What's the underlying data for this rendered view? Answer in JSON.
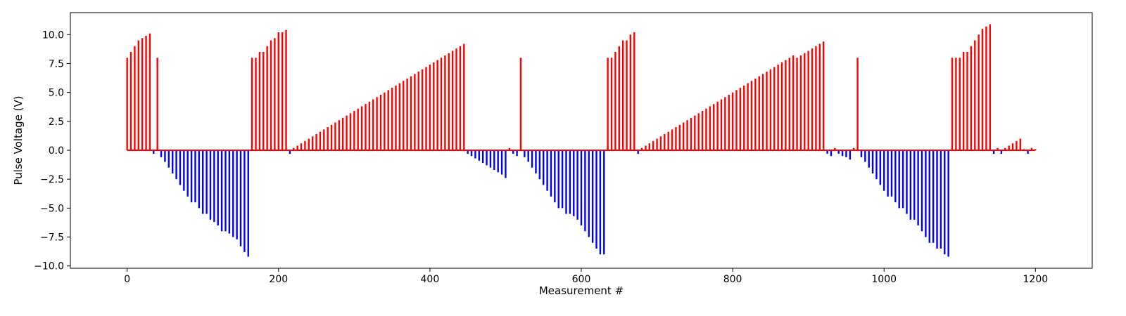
{
  "chart_data": {
    "type": "bar",
    "title": "",
    "xlabel": "Measurement #",
    "ylabel": "Pulse Voltage (V)",
    "xlim": [
      -75,
      1275
    ],
    "ylim": [
      -10.2,
      11.9
    ],
    "xticks": [
      0,
      200,
      400,
      600,
      800,
      1000,
      1200
    ],
    "yticks": [
      -10.0,
      -7.5,
      -5.0,
      -2.5,
      0.0,
      2.5,
      5.0,
      7.5,
      10.0
    ],
    "xtick_labels": [
      "0",
      "200",
      "400",
      "600",
      "800",
      "1000",
      "1200"
    ],
    "ytick_labels": [
      "−10.0",
      "−7.5",
      "−5.0",
      "−2.5",
      "0.0",
      "2.5",
      "5.0",
      "7.5",
      "10.0"
    ],
    "grid": false,
    "legend": "none",
    "colors": {
      "positive": "#ff0000",
      "negative": "#0000ff"
    },
    "sample_spacing": 5,
    "x_start": 0,
    "x_end": 1200,
    "values": [
      8.0,
      8.5,
      9.0,
      9.5,
      9.7,
      9.9,
      10.1,
      -0.3,
      8.0,
      -0.6,
      -1.0,
      -1.5,
      -2.0,
      -2.5,
      -3.0,
      -3.5,
      -4.0,
      -4.5,
      -4.5,
      -5.0,
      -5.5,
      -5.5,
      -6.0,
      -6.2,
      -6.5,
      -7.0,
      -7.0,
      -7.2,
      -7.5,
      -7.7,
      -8.3,
      -8.8,
      -9.2,
      8.0,
      8.0,
      8.5,
      8.5,
      9.0,
      9.5,
      9.7,
      10.2,
      10.2,
      10.4,
      -0.3,
      0.2,
      0.4,
      0.6,
      0.8,
      1.0,
      1.2,
      1.4,
      1.6,
      1.8,
      2.0,
      2.2,
      2.4,
      2.6,
      2.8,
      3.0,
      3.2,
      3.4,
      3.6,
      3.8,
      4.0,
      4.2,
      4.4,
      4.6,
      4.8,
      5.0,
      5.2,
      5.4,
      5.6,
      5.8,
      6.0,
      6.2,
      6.4,
      6.6,
      6.8,
      7.0,
      7.2,
      7.4,
      7.6,
      7.8,
      8.0,
      8.2,
      8.4,
      8.6,
      8.8,
      9.0,
      9.2,
      -0.3,
      -0.5,
      -0.7,
      -0.9,
      -1.1,
      -1.3,
      -1.5,
      -1.7,
      -1.9,
      -2.1,
      -2.4,
      0.2,
      -0.3,
      -0.5,
      8.0,
      -0.6,
      -1.0,
      -1.5,
      -2.0,
      -2.5,
      -3.0,
      -3.5,
      -4.0,
      -4.5,
      -5.0,
      -5.0,
      -5.5,
      -5.5,
      -5.7,
      -6.0,
      -6.5,
      -7.0,
      -7.5,
      -8.0,
      -8.5,
      -9.0,
      -9.0,
      8.0,
      8.0,
      8.5,
      9.0,
      9.5,
      9.5,
      10.0,
      10.2,
      -0.3,
      0.2,
      0.4,
      0.6,
      0.8,
      1.0,
      1.2,
      1.4,
      1.6,
      1.8,
      2.0,
      2.2,
      2.4,
      2.6,
      2.8,
      3.0,
      3.2,
      3.4,
      3.6,
      3.8,
      4.0,
      4.2,
      4.4,
      4.6,
      4.8,
      5.0,
      5.2,
      5.4,
      5.6,
      5.8,
      6.0,
      6.2,
      6.4,
      6.6,
      6.8,
      7.0,
      7.2,
      7.4,
      7.6,
      7.8,
      8.0,
      8.2,
      8.0,
      8.2,
      8.4,
      8.6,
      8.8,
      9.0,
      9.2,
      9.4,
      -0.3,
      -0.5,
      0.2,
      -0.3,
      -0.5,
      -0.6,
      -0.8,
      0.2,
      8.0,
      -0.6,
      -1.0,
      -1.5,
      -2.0,
      -2.5,
      -3.0,
      -3.5,
      -4.0,
      -4.0,
      -4.5,
      -5.0,
      -5.0,
      -5.5,
      -6.0,
      -6.0,
      -6.5,
      -7.0,
      -7.5,
      -8.0,
      -8.0,
      -8.5,
      -8.5,
      -9.0,
      -9.2,
      8.0,
      8.0,
      8.0,
      8.5,
      8.5,
      9.0,
      9.5,
      10.0,
      10.5,
      10.7,
      10.9,
      -0.3,
      0.2,
      -0.3,
      0.2,
      0.4,
      0.6,
      0.8,
      1.0,
      0.1,
      -0.3,
      0.2,
      0.1
    ]
  }
}
